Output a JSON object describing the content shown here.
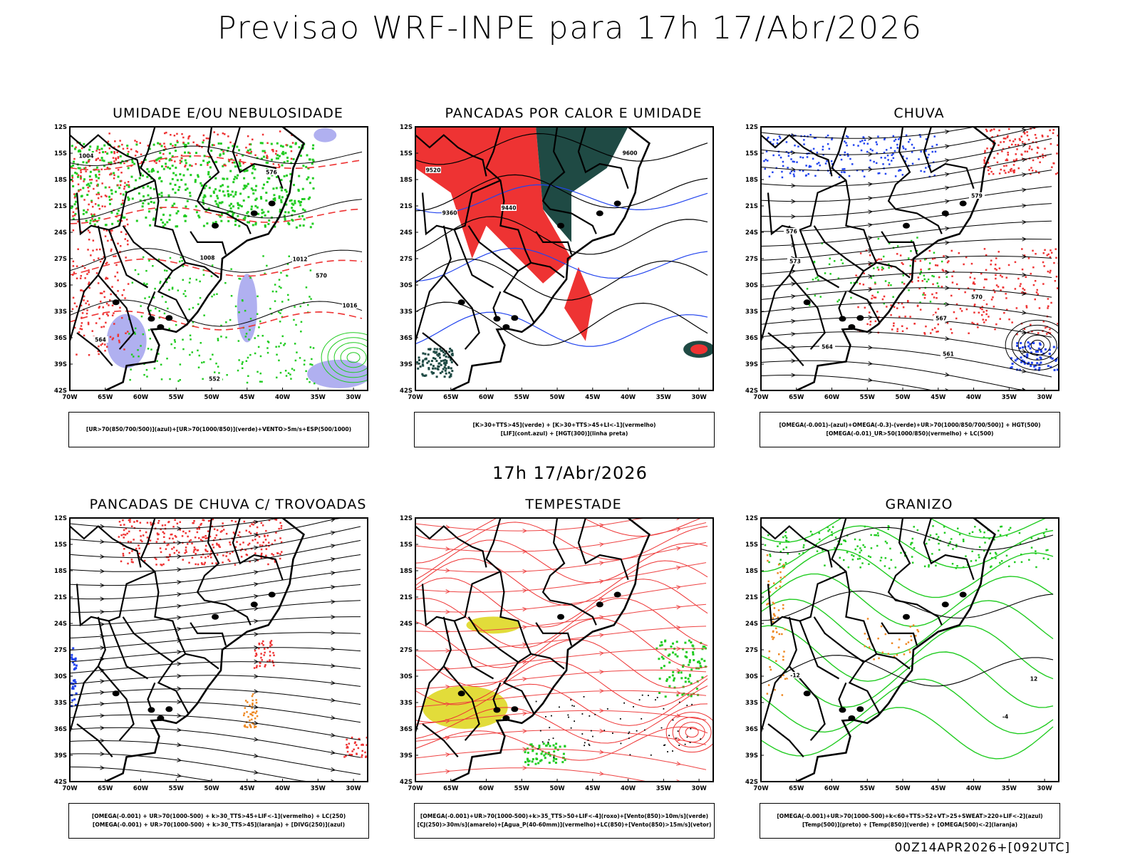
{
  "title": "Previsao WRF-INPE  para 17h 17/Abr/2026",
  "mid_date": "17h 17/Abr/2026",
  "run_stamp": "00Z14APR2026+[092UTC]",
  "lat_labels": [
    "12S",
    "15S",
    "18S",
    "21S",
    "24S",
    "27S",
    "30S",
    "33S",
    "36S",
    "39S",
    "42S"
  ],
  "lon_labels": [
    "70W",
    "65W",
    "60W",
    "55W",
    "50W",
    "45W",
    "40W",
    "35W",
    "30W"
  ],
  "panels": [
    {
      "title": "UMIDADE E/OU NEBULOSIDADE",
      "legend": [
        "[UR>70(850/700/500)](azul)+[UR>70(1000/850)](verde)+VENTO>5m/s+ESP(500/1000)"
      ],
      "contour_labels": [
        "1004",
        "1008",
        "1012",
        "1016",
        "552",
        "564",
        "570",
        "576"
      ]
    },
    {
      "title": "PANCADAS POR CALOR E UMIDADE",
      "legend": [
        "[K>30+TTS>45](verde) + [K>30+TTS>45+LI<-1](vermelho)",
        "[LIF](cont.azul) + [HGT(300)](linha preta)"
      ],
      "contour_labels": [
        "9600",
        "9520",
        "9440",
        "9360"
      ]
    },
    {
      "title": "CHUVA",
      "legend": [
        "[OMEGA(-0.001)-(azul)+OMEGA(-0.3)-(verde)+UR>70(1000/850/700/500)] + HGT(500)",
        "[OMEGA(-0.01)_UR>50(1000/850)(vermelho) + LC(500)"
      ],
      "contour_labels": [
        "579",
        "576",
        "573",
        "570",
        "567",
        "564",
        "561"
      ]
    },
    {
      "title": "PANCADAS DE CHUVA C/ TROVOADAS",
      "legend": [
        "[OMEGA(-0.001) + UR>70(1000-500) + k>30_TTS>45+LIF<-1](vermelho) + LC(250)",
        "[OMEGA(-0.001) + UR>70(1000-500) + k>30_TTS>45](laranja) + [DIVG(250)](azul)"
      ],
      "contour_labels": []
    },
    {
      "title": "TEMPESTADE",
      "legend": [
        "[OMEGA(-0.001)+UR>70(1000-500)+k>35_TTS>50+LIF<-4](roxo)+[Vento(850)>10m/s](verde)",
        "[CJ(250)>30m/s](amarelo)+[Agua_P(40-60mm)](vermelho)+LC(850)+[Vento(850)>15m/s](vetor)"
      ],
      "contour_labels": []
    },
    {
      "title": "GRANIZO",
      "legend": [
        "[OMEGA(-0.001)+UR>70(1000-500)+k<60+TTS>52+VT>25+SWEAT>220+LIF<-2](azul)",
        "[Temp(500)](preto) + [Temp(850)](verde) + [OMEGA(500)<-2](laranja)"
      ],
      "contour_labels": [
        "-12",
        "12",
        "-4"
      ]
    }
  ],
  "colors": {
    "green": "#22cc22",
    "red": "#ee3333",
    "blue": "#2244ee",
    "lavender": "#b0b0f0",
    "darkgreen": "#1f4a44",
    "yellow": "#e2dc3a",
    "orange": "#ee8822"
  }
}
